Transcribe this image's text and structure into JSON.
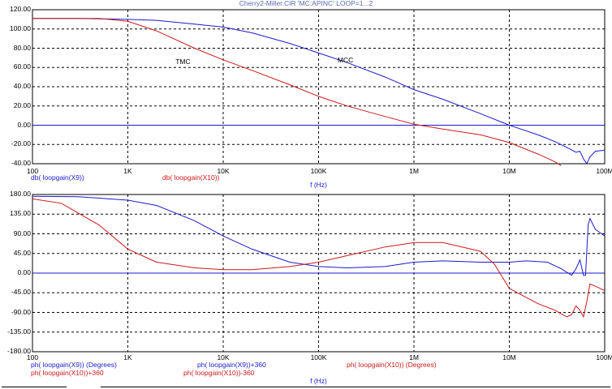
{
  "window_title": "Cherry2-Miller.CIR 'MC:APINC' LOOP=1...2",
  "colors": {
    "blue": "#1a1acc",
    "red": "#cc1a1a",
    "grid": "#000000",
    "background": "#ffffff"
  },
  "chart_data": [
    {
      "type": "line",
      "title": "",
      "x_scale": "log",
      "xlim": [
        100,
        100000000
      ],
      "ylim": [
        -40,
        120
      ],
      "grid": true,
      "xlabel": "f (Hz)",
      "x_ticks": [
        {
          "v": 100,
          "label": "100"
        },
        {
          "v": 1000,
          "label": "1K"
        },
        {
          "v": 10000,
          "label": "10K"
        },
        {
          "v": 100000,
          "label": "100K"
        },
        {
          "v": 1000000,
          "label": "1M"
        },
        {
          "v": 10000000,
          "label": "10M"
        },
        {
          "v": 100000000,
          "label": "100M"
        }
      ],
      "y_ticks": [
        {
          "v": 120,
          "label": "120.00"
        },
        {
          "v": 100,
          "label": "100.00"
        },
        {
          "v": 80,
          "label": "80.00"
        },
        {
          "v": 60,
          "label": "60.00"
        },
        {
          "v": 40,
          "label": "40.00"
        },
        {
          "v": 20,
          "label": "20.00"
        },
        {
          "v": 0,
          "label": "0.00"
        },
        {
          "v": -20,
          "label": "-20.00"
        },
        {
          "v": -40,
          "label": "-40.00"
        }
      ],
      "annotations": [
        {
          "text": "TMC",
          "x": 4000,
          "y": 65
        },
        {
          "text": "MCC",
          "x": 200000,
          "y": 67
        }
      ],
      "legend": [
        {
          "text": "db( loopgain(X9))",
          "color": "blue"
        },
        {
          "text": "db( loopgain(X10))",
          "color": "red"
        }
      ],
      "series": [
        {
          "color": "blue",
          "points": [
            [
              100,
              111
            ],
            [
              300,
              111
            ],
            [
              1000,
              110
            ],
            [
              2000,
              109
            ],
            [
              5000,
              105
            ],
            [
              10000,
              102
            ],
            [
              20000,
              96
            ],
            [
              50000,
              85
            ],
            [
              100000,
              75
            ],
            [
              200000,
              65
            ],
            [
              500000,
              50
            ],
            [
              1000000,
              37
            ],
            [
              2000000,
              27
            ],
            [
              5000000,
              12
            ],
            [
              10000000,
              0
            ],
            [
              20000000,
              -10
            ],
            [
              30000000,
              -17
            ],
            [
              40000000,
              -23
            ],
            [
              50000000,
              -28
            ],
            [
              55000000,
              -27
            ],
            [
              60000000,
              -35
            ],
            [
              65000000,
              -40
            ],
            [
              70000000,
              -33
            ],
            [
              80000000,
              -27
            ],
            [
              100000000,
              -26
            ]
          ]
        },
        {
          "color": "red",
          "points": [
            [
              100,
              111
            ],
            [
              300,
              111
            ],
            [
              500,
              111
            ],
            [
              1000,
              108
            ],
            [
              2000,
              98
            ],
            [
              5000,
              80
            ],
            [
              10000,
              68
            ],
            [
              20000,
              57
            ],
            [
              50000,
              42
            ],
            [
              100000,
              30
            ],
            [
              200000,
              20
            ],
            [
              500000,
              9
            ],
            [
              1000000,
              1
            ],
            [
              2000000,
              -4
            ],
            [
              5000000,
              -10
            ],
            [
              10000000,
              -18
            ],
            [
              20000000,
              -30
            ],
            [
              30000000,
              -38
            ],
            [
              35000000,
              -42
            ]
          ]
        }
      ]
    },
    {
      "type": "line",
      "title": "",
      "x_scale": "log",
      "xlim": [
        100,
        100000000
      ],
      "ylim": [
        -180,
        180
      ],
      "grid": true,
      "xlabel": "f (Hz)",
      "x_ticks": [
        {
          "v": 100,
          "label": "100"
        },
        {
          "v": 1000,
          "label": "1K"
        },
        {
          "v": 10000,
          "label": "10K"
        },
        {
          "v": 100000,
          "label": "100K"
        },
        {
          "v": 1000000,
          "label": "1M"
        },
        {
          "v": 10000000,
          "label": "10M"
        },
        {
          "v": 100000000,
          "label": "100M"
        }
      ],
      "y_ticks": [
        {
          "v": 180,
          "label": "180.00"
        },
        {
          "v": 135,
          "label": "135.00"
        },
        {
          "v": 90,
          "label": "90.00"
        },
        {
          "v": 45,
          "label": "45.00"
        },
        {
          "v": 0,
          "label": "0.00"
        },
        {
          "v": -45,
          "label": "-45.00"
        },
        {
          "v": -90,
          "label": "-90.00"
        },
        {
          "v": -135,
          "label": "-135.00"
        },
        {
          "v": -180,
          "label": "-180.00"
        }
      ],
      "legend": [
        {
          "text": "ph( loopgain(X9)) (Degrees)",
          "color": "blue"
        },
        {
          "text": "ph( loopgain(X9))+360",
          "color": "blue"
        },
        {
          "text": "ph( loopgain(X10)) (Degrees)",
          "color": "red"
        },
        {
          "text": "ph( loopgain(X10))+360",
          "color": "red"
        },
        {
          "text": "ph( loopgain(X10))-360",
          "color": "red"
        }
      ],
      "series": [
        {
          "color": "blue",
          "points": [
            [
              100,
              176
            ],
            [
              300,
              175
            ],
            [
              1000,
              167
            ],
            [
              2000,
              155
            ],
            [
              5000,
              120
            ],
            [
              10000,
              85
            ],
            [
              20000,
              55
            ],
            [
              50000,
              25
            ],
            [
              100000,
              15
            ],
            [
              200000,
              12
            ],
            [
              500000,
              15
            ],
            [
              1000000,
              25
            ],
            [
              2000000,
              28
            ],
            [
              5000000,
              25
            ],
            [
              10000000,
              25
            ],
            [
              15000000,
              28
            ],
            [
              25000000,
              25
            ],
            [
              35000000,
              10
            ],
            [
              45000000,
              -5
            ],
            [
              50000000,
              10
            ],
            [
              55000000,
              30
            ],
            [
              60000000,
              -5
            ],
            [
              63000000,
              -5
            ],
            [
              67000000,
              110
            ],
            [
              70000000,
              125
            ],
            [
              80000000,
              100
            ],
            [
              100000000,
              85
            ]
          ]
        },
        {
          "color": "red",
          "points": [
            [
              100,
              170
            ],
            [
              200,
              160
            ],
            [
              500,
              110
            ],
            [
              1000,
              55
            ],
            [
              2000,
              25
            ],
            [
              5000,
              12
            ],
            [
              10000,
              8
            ],
            [
              20000,
              8
            ],
            [
              50000,
              15
            ],
            [
              100000,
              25
            ],
            [
              200000,
              40
            ],
            [
              500000,
              60
            ],
            [
              1000000,
              70
            ],
            [
              2000000,
              70
            ],
            [
              5000000,
              50
            ],
            [
              7000000,
              20
            ],
            [
              10000000,
              -35
            ],
            [
              20000000,
              -70
            ],
            [
              30000000,
              -85
            ],
            [
              40000000,
              -100
            ],
            [
              45000000,
              -95
            ],
            [
              50000000,
              -75
            ],
            [
              55000000,
              -85
            ],
            [
              60000000,
              -100
            ],
            [
              65000000,
              -65
            ],
            [
              70000000,
              -25
            ],
            [
              80000000,
              -30
            ],
            [
              100000000,
              -40
            ]
          ]
        }
      ]
    }
  ]
}
